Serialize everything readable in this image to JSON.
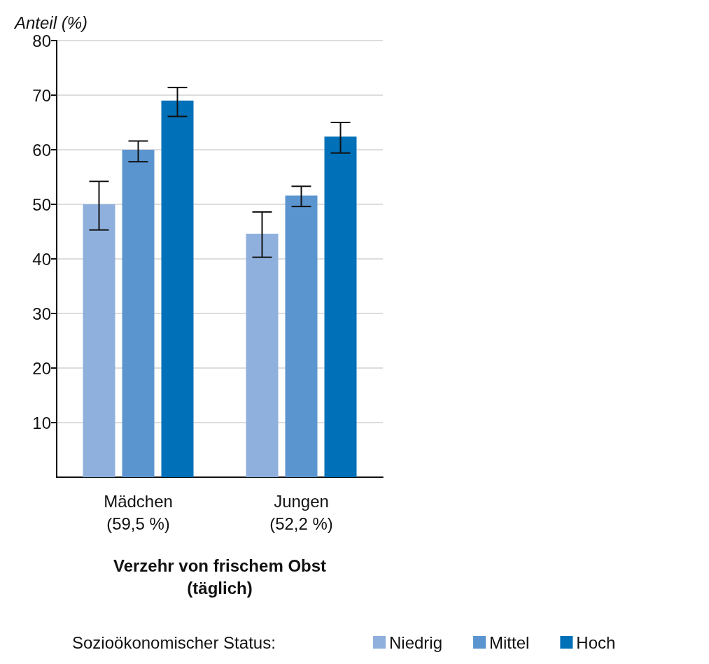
{
  "chart_data": {
    "type": "bar",
    "ylabel": "Anteil (%)",
    "xlabel": "Verzehr von frischem Obst\n(täglich)",
    "legend_title": "Sozioökonomischer Status:",
    "categories": [
      "Mädchen\n(59,5 %)",
      "Jungen\n(52,2 %)"
    ],
    "series": [
      {
        "name": "Niedrig",
        "color": "#8fb0dd",
        "values": [
          50,
          44.6
        ],
        "errors": [
          [
            45.3,
            54.2
          ],
          [
            40.3,
            48.6
          ]
        ]
      },
      {
        "name": "Mittel",
        "color": "#5b95d0",
        "values": [
          60,
          51.6
        ],
        "errors": [
          [
            57.8,
            61.6
          ],
          [
            49.6,
            53.3
          ]
        ]
      },
      {
        "name": "Hoch",
        "color": "#0070b8",
        "values": [
          69,
          62.4
        ],
        "errors": [
          [
            66.1,
            71.4
          ],
          [
            59.4,
            65
          ]
        ]
      }
    ],
    "ylim": [
      0,
      80
    ],
    "yticks": [
      10,
      20,
      30,
      40,
      50,
      60,
      70,
      80
    ],
    "grid": "y",
    "legend": "bottom"
  }
}
